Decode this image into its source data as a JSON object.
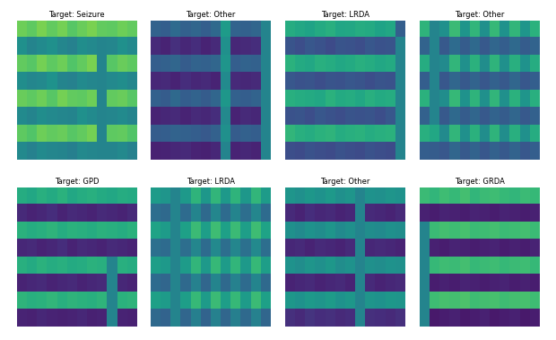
{
  "chart_data": [
    {
      "type": "heatmap",
      "title": "Target: Seizure",
      "tick_labels": false,
      "color_range": [
        0,
        1
      ],
      "cells": [
        [
          0.78,
          0.75,
          0.8,
          0.76,
          0.79,
          0.74,
          0.77,
          0.8,
          0.76,
          0.75,
          0.78,
          0.76
        ],
        [
          0.5,
          0.45,
          0.48,
          0.5,
          0.46,
          0.44,
          0.49,
          0.47,
          0.45,
          0.46,
          0.5,
          0.47
        ],
        [
          0.76,
          0.74,
          0.79,
          0.75,
          0.78,
          0.73,
          0.76,
          0.8,
          0.45,
          0.74,
          0.77,
          0.75
        ],
        [
          0.49,
          0.46,
          0.47,
          0.51,
          0.45,
          0.44,
          0.48,
          0.46,
          0.45,
          0.47,
          0.49,
          0.46
        ],
        [
          0.77,
          0.75,
          0.78,
          0.74,
          0.79,
          0.76,
          0.75,
          0.78,
          0.45,
          0.76,
          0.77,
          0.74
        ],
        [
          0.48,
          0.45,
          0.49,
          0.47,
          0.46,
          0.45,
          0.5,
          0.48,
          0.45,
          0.46,
          0.48,
          0.45
        ],
        [
          0.75,
          0.73,
          0.78,
          0.76,
          0.77,
          0.74,
          0.76,
          0.79,
          0.45,
          0.75,
          0.76,
          0.73
        ],
        [
          0.47,
          0.44,
          0.48,
          0.46,
          0.45,
          0.43,
          0.47,
          0.46,
          0.45,
          0.45,
          0.47,
          0.44
        ]
      ]
    },
    {
      "type": "heatmap",
      "title": "Target: Other",
      "tick_labels": false,
      "color_range": [
        0,
        1
      ],
      "cells": [
        [
          0.32,
          0.3,
          0.35,
          0.31,
          0.33,
          0.3,
          0.34,
          0.55,
          0.32,
          0.31,
          0.33,
          0.45
        ],
        [
          0.12,
          0.1,
          0.14,
          0.11,
          0.13,
          0.1,
          0.12,
          0.5,
          0.11,
          0.12,
          0.13,
          0.45
        ],
        [
          0.3,
          0.31,
          0.33,
          0.29,
          0.32,
          0.31,
          0.33,
          0.52,
          0.3,
          0.32,
          0.31,
          0.45
        ],
        [
          0.11,
          0.12,
          0.1,
          0.13,
          0.11,
          0.12,
          0.1,
          0.48,
          0.12,
          0.11,
          0.12,
          0.45
        ],
        [
          0.31,
          0.29,
          0.34,
          0.3,
          0.32,
          0.29,
          0.33,
          0.53,
          0.31,
          0.3,
          0.32,
          0.45
        ],
        [
          0.1,
          0.11,
          0.12,
          0.1,
          0.12,
          0.11,
          0.13,
          0.47,
          0.1,
          0.12,
          0.11,
          0.45
        ],
        [
          0.29,
          0.3,
          0.32,
          0.31,
          0.3,
          0.28,
          0.31,
          0.5,
          0.29,
          0.31,
          0.3,
          0.45
        ],
        [
          0.09,
          0.1,
          0.11,
          0.12,
          0.1,
          0.09,
          0.11,
          0.45,
          0.1,
          0.11,
          0.1,
          0.45
        ]
      ]
    },
    {
      "type": "heatmap",
      "title": "Target: LRDA",
      "tick_labels": false,
      "color_range": [
        0,
        1
      ],
      "cells": [
        [
          0.62,
          0.6,
          0.58,
          0.61,
          0.63,
          0.59,
          0.6,
          0.62,
          0.61,
          0.58,
          0.6,
          0.3
        ],
        [
          0.26,
          0.24,
          0.27,
          0.25,
          0.23,
          0.26,
          0.25,
          0.24,
          0.27,
          0.25,
          0.26,
          0.45
        ],
        [
          0.64,
          0.61,
          0.6,
          0.63,
          0.62,
          0.6,
          0.61,
          0.63,
          0.62,
          0.6,
          0.61,
          0.45
        ],
        [
          0.27,
          0.25,
          0.26,
          0.24,
          0.26,
          0.25,
          0.27,
          0.26,
          0.24,
          0.26,
          0.25,
          0.45
        ],
        [
          0.63,
          0.62,
          0.61,
          0.6,
          0.64,
          0.61,
          0.62,
          0.6,
          0.63,
          0.61,
          0.62,
          0.45
        ],
        [
          0.25,
          0.26,
          0.24,
          0.27,
          0.25,
          0.24,
          0.26,
          0.25,
          0.26,
          0.24,
          0.27,
          0.45
        ],
        [
          0.66,
          0.63,
          0.62,
          0.64,
          0.65,
          0.62,
          0.63,
          0.64,
          0.62,
          0.63,
          0.64,
          0.45
        ],
        [
          0.24,
          0.23,
          0.25,
          0.24,
          0.23,
          0.25,
          0.24,
          0.23,
          0.25,
          0.24,
          0.23,
          0.45
        ]
      ]
    },
    {
      "type": "heatmap",
      "title": "Target: Other",
      "tick_labels": false,
      "color_range": [
        0,
        1
      ],
      "cells": [
        [
          0.65,
          0.45,
          0.5,
          0.68,
          0.52,
          0.66,
          0.5,
          0.67,
          0.51,
          0.66,
          0.52,
          0.64
        ],
        [
          0.32,
          0.45,
          0.28,
          0.35,
          0.29,
          0.34,
          0.28,
          0.33,
          0.3,
          0.34,
          0.29,
          0.32
        ],
        [
          0.62,
          0.45,
          0.48,
          0.66,
          0.5,
          0.64,
          0.49,
          0.65,
          0.5,
          0.63,
          0.51,
          0.62
        ],
        [
          0.3,
          0.45,
          0.27,
          0.33,
          0.28,
          0.32,
          0.27,
          0.31,
          0.28,
          0.33,
          0.27,
          0.3
        ],
        [
          0.64,
          0.45,
          0.49,
          0.67,
          0.51,
          0.65,
          0.5,
          0.66,
          0.5,
          0.64,
          0.52,
          0.63
        ],
        [
          0.31,
          0.45,
          0.28,
          0.34,
          0.29,
          0.33,
          0.28,
          0.32,
          0.29,
          0.33,
          0.28,
          0.31
        ],
        [
          0.63,
          0.6,
          0.48,
          0.66,
          0.5,
          0.64,
          0.49,
          0.65,
          0.49,
          0.63,
          0.5,
          0.62
        ],
        [
          0.3,
          0.29,
          0.27,
          0.33,
          0.28,
          0.32,
          0.27,
          0.31,
          0.28,
          0.32,
          0.27,
          0.3
        ]
      ]
    },
    {
      "type": "heatmap",
      "title": "Target: GPD",
      "tick_labels": false,
      "color_range": [
        0,
        1
      ],
      "cells": [
        [
          0.62,
          0.6,
          0.63,
          0.61,
          0.64,
          0.6,
          0.62,
          0.63,
          0.61,
          0.6,
          0.62,
          0.61
        ],
        [
          0.12,
          0.1,
          0.11,
          0.13,
          0.1,
          0.12,
          0.11,
          0.1,
          0.12,
          0.11,
          0.1,
          0.12
        ],
        [
          0.64,
          0.62,
          0.63,
          0.65,
          0.62,
          0.64,
          0.63,
          0.62,
          0.64,
          0.63,
          0.62,
          0.64
        ],
        [
          0.11,
          0.12,
          0.1,
          0.11,
          0.13,
          0.1,
          0.12,
          0.11,
          0.1,
          0.12,
          0.11,
          0.1
        ],
        [
          0.63,
          0.61,
          0.64,
          0.62,
          0.63,
          0.61,
          0.62,
          0.64,
          0.63,
          0.45,
          0.63,
          0.62
        ],
        [
          0.1,
          0.11,
          0.12,
          0.1,
          0.11,
          0.12,
          0.1,
          0.11,
          0.12,
          0.45,
          0.11,
          0.1
        ],
        [
          0.65,
          0.63,
          0.64,
          0.66,
          0.63,
          0.65,
          0.64,
          0.63,
          0.65,
          0.45,
          0.64,
          0.65
        ],
        [
          0.1,
          0.09,
          0.11,
          0.1,
          0.09,
          0.1,
          0.11,
          0.09,
          0.1,
          0.45,
          0.1,
          0.09
        ]
      ]
    },
    {
      "type": "heatmap",
      "title": "Target: LRDA",
      "tick_labels": false,
      "color_range": [
        0,
        1
      ],
      "cells": [
        [
          0.55,
          0.52,
          0.45,
          0.54,
          0.65,
          0.53,
          0.66,
          0.54,
          0.65,
          0.53,
          0.66,
          0.55
        ],
        [
          0.36,
          0.34,
          0.45,
          0.35,
          0.45,
          0.34,
          0.46,
          0.35,
          0.45,
          0.36,
          0.46,
          0.35
        ],
        [
          0.58,
          0.55,
          0.45,
          0.57,
          0.68,
          0.56,
          0.69,
          0.57,
          0.68,
          0.56,
          0.69,
          0.58
        ],
        [
          0.37,
          0.35,
          0.45,
          0.36,
          0.46,
          0.35,
          0.47,
          0.36,
          0.46,
          0.37,
          0.47,
          0.36
        ],
        [
          0.56,
          0.54,
          0.45,
          0.55,
          0.66,
          0.54,
          0.67,
          0.55,
          0.66,
          0.54,
          0.67,
          0.56
        ],
        [
          0.35,
          0.33,
          0.45,
          0.34,
          0.44,
          0.33,
          0.45,
          0.34,
          0.44,
          0.35,
          0.45,
          0.34
        ],
        [
          0.57,
          0.55,
          0.45,
          0.56,
          0.67,
          0.55,
          0.68,
          0.56,
          0.67,
          0.55,
          0.68,
          0.57
        ],
        [
          0.34,
          0.32,
          0.45,
          0.33,
          0.43,
          0.32,
          0.44,
          0.33,
          0.43,
          0.34,
          0.44,
          0.33
        ]
      ]
    },
    {
      "type": "heatmap",
      "title": "Target: Other",
      "tick_labels": false,
      "color_range": [
        0,
        1
      ],
      "cells": [
        [
          0.52,
          0.5,
          0.53,
          0.51,
          0.54,
          0.5,
          0.52,
          0.45,
          0.51,
          0.5,
          0.52,
          0.51
        ],
        [
          0.12,
          0.1,
          0.13,
          0.11,
          0.12,
          0.1,
          0.11,
          0.45,
          0.12,
          0.11,
          0.1,
          0.12
        ],
        [
          0.5,
          0.48,
          0.51,
          0.49,
          0.52,
          0.48,
          0.5,
          0.45,
          0.49,
          0.48,
          0.5,
          0.49
        ],
        [
          0.11,
          0.12,
          0.1,
          0.12,
          0.11,
          0.1,
          0.12,
          0.45,
          0.11,
          0.12,
          0.11,
          0.1
        ],
        [
          0.51,
          0.49,
          0.52,
          0.5,
          0.53,
          0.49,
          0.51,
          0.45,
          0.5,
          0.49,
          0.51,
          0.5
        ],
        [
          0.1,
          0.11,
          0.12,
          0.1,
          0.11,
          0.12,
          0.1,
          0.45,
          0.12,
          0.1,
          0.11,
          0.12
        ],
        [
          0.53,
          0.51,
          0.54,
          0.52,
          0.55,
          0.51,
          0.53,
          0.45,
          0.52,
          0.51,
          0.53,
          0.52
        ],
        [
          0.14,
          0.12,
          0.15,
          0.13,
          0.14,
          0.12,
          0.13,
          0.45,
          0.14,
          0.13,
          0.12,
          0.14
        ]
      ]
    },
    {
      "type": "heatmap",
      "title": "Target: GRDA",
      "tick_labels": false,
      "color_range": [
        0,
        1
      ],
      "cells": [
        [
          0.68,
          0.66,
          0.69,
          0.67,
          0.7,
          0.66,
          0.68,
          0.69,
          0.67,
          0.66,
          0.68,
          0.67
        ],
        [
          0.09,
          0.08,
          0.1,
          0.09,
          0.08,
          0.1,
          0.09,
          0.08,
          0.1,
          0.09,
          0.08,
          0.09
        ],
        [
          0.45,
          0.68,
          0.7,
          0.69,
          0.71,
          0.68,
          0.69,
          0.7,
          0.68,
          0.69,
          0.7,
          0.68
        ],
        [
          0.45,
          0.09,
          0.08,
          0.1,
          0.09,
          0.08,
          0.09,
          0.1,
          0.08,
          0.09,
          0.08,
          0.1
        ],
        [
          0.45,
          0.67,
          0.69,
          0.68,
          0.7,
          0.67,
          0.68,
          0.69,
          0.67,
          0.68,
          0.69,
          0.67
        ],
        [
          0.45,
          0.08,
          0.09,
          0.08,
          0.1,
          0.09,
          0.08,
          0.09,
          0.1,
          0.08,
          0.09,
          0.08
        ],
        [
          0.45,
          0.69,
          0.71,
          0.7,
          0.72,
          0.69,
          0.7,
          0.71,
          0.69,
          0.7,
          0.71,
          0.69
        ],
        [
          0.45,
          0.07,
          0.08,
          0.09,
          0.07,
          0.08,
          0.09,
          0.07,
          0.08,
          0.09,
          0.07,
          0.08
        ]
      ]
    }
  ]
}
